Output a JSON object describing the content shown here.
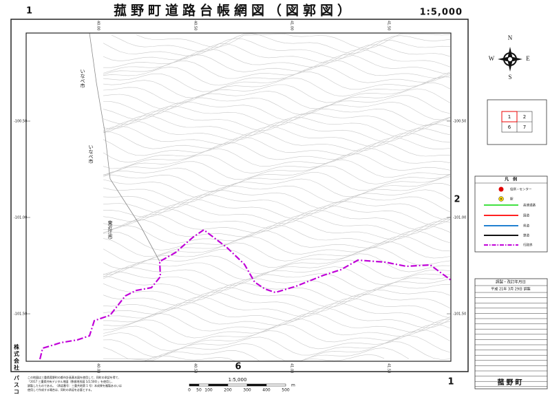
{
  "header": {
    "sheet_number": "1",
    "title": "菰野町道路台帳網図（図郭図）",
    "scale": "1:5,000"
  },
  "map": {
    "grid_labels_y": [
      "-100.50",
      "-101.00",
      "-101.50"
    ],
    "grid_labels_x": [
      "40.00",
      "40.50",
      "41.00",
      "41.50"
    ],
    "adjacent_right": "2",
    "adjacent_bottom": "6",
    "place_labels": [
      "いなべ市",
      "いなべ市",
      "東近江市"
    ]
  },
  "compass": {
    "n": "N",
    "s": "S",
    "e": "E",
    "w": "W"
  },
  "index_map": {
    "cells": [
      "1",
      "2",
      "6",
      "7"
    ]
  },
  "legend": {
    "title": "凡　例",
    "items": [
      "役所・センター",
      "駅",
      "高速道路",
      "国道",
      "県道",
      "鉄道",
      "行政界"
    ]
  },
  "revision": {
    "header": "調製・改訂年月日",
    "rows": [
      "平成 21年 3月 29日 調製"
    ]
  },
  "footer": {
    "note": [
      "この地図は三重県菰野町の都市計画基本図を使用して、同町の承認を得て、",
      "「2017 三重県共有デジタル地図（数値地形図 1/2,500）」を使用し、",
      "調製したものである。（承認番号：三重共地第 1 号）本成果を複製あるいは",
      "使用して作成する場合は、同町の承認を必要とする。"
    ],
    "scale_label": "1:5,000",
    "scale_ticks": [
      0,
      50,
      100,
      200,
      300,
      400,
      500
    ],
    "scale_unit": "m",
    "company": "株式会社 パスコ調製",
    "town": "菰野町",
    "sheet_number": "1"
  }
}
